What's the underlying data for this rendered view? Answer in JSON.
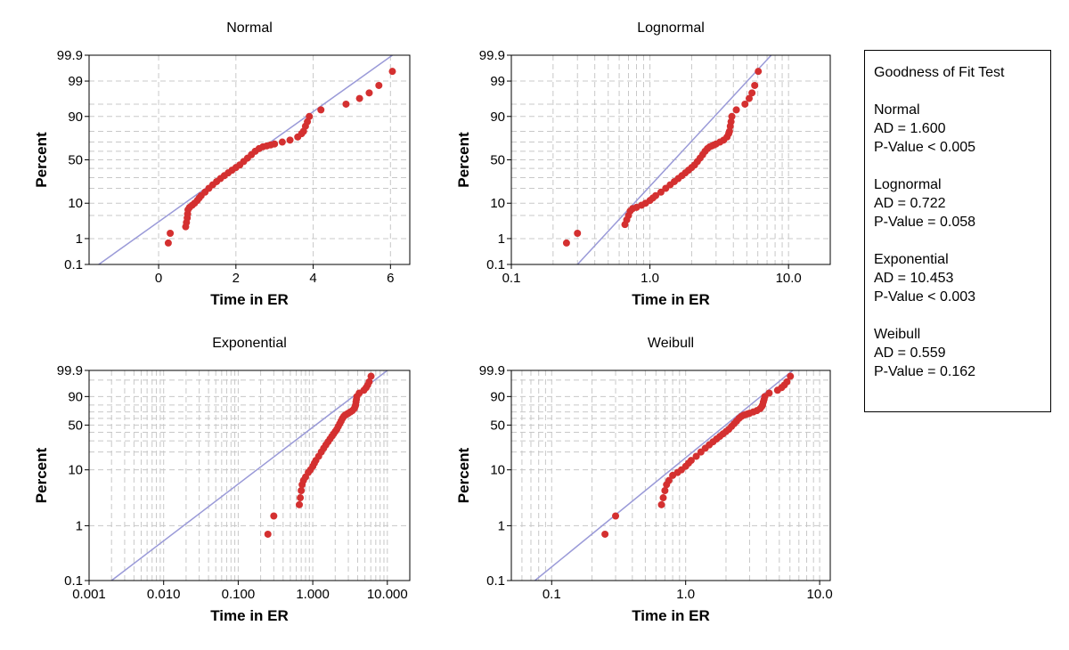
{
  "colors": {
    "points": "#d43030",
    "fit_line": "#9a9ad8",
    "grid": "#c8c8c8",
    "frame": "#000000"
  },
  "chart_data": [
    {
      "type": "scatter",
      "title": "Normal",
      "xlabel": "Time in ER",
      "ylabel": "Percent",
      "xscale": "linear",
      "yscale": "normal-probability",
      "xlim": [
        -1.8,
        6.5
      ],
      "xticks": [
        0,
        2,
        4,
        6
      ],
      "xtick_labels": [
        "0",
        "2",
        "4",
        "6"
      ],
      "yticks": [
        0.1,
        1,
        10,
        50,
        90,
        99,
        99.9
      ],
      "ytick_labels": [
        "0.1",
        "1",
        "10",
        "50",
        "90",
        "99",
        "99.9"
      ],
      "ygrid": [
        0.1,
        1,
        5,
        10,
        20,
        30,
        40,
        50,
        60,
        70,
        80,
        90,
        95,
        99,
        99.9
      ],
      "fit_line": {
        "x": [
          -1.55,
          6.05
        ],
        "percent": [
          0.1,
          99.9
        ]
      },
      "points": [
        [
          0.25,
          0.7
        ],
        [
          0.3,
          1.5
        ],
        [
          0.7,
          2.4
        ],
        [
          0.72,
          3.2
        ],
        [
          0.74,
          4.3
        ],
        [
          0.75,
          5.5
        ],
        [
          0.76,
          7
        ],
        [
          0.8,
          8
        ],
        [
          0.87,
          9
        ],
        [
          0.93,
          10
        ],
        [
          1.0,
          11.5
        ],
        [
          1.05,
          13
        ],
        [
          1.1,
          14.5
        ],
        [
          1.2,
          17
        ],
        [
          1.3,
          20
        ],
        [
          1.4,
          23
        ],
        [
          1.5,
          26
        ],
        [
          1.6,
          29
        ],
        [
          1.7,
          32
        ],
        [
          1.8,
          35
        ],
        [
          1.9,
          38
        ],
        [
          2.0,
          41
        ],
        [
          2.1,
          44
        ],
        [
          2.2,
          48
        ],
        [
          2.3,
          52
        ],
        [
          2.4,
          56
        ],
        [
          2.5,
          60
        ],
        [
          2.6,
          63
        ],
        [
          2.7,
          65
        ],
        [
          2.8,
          66
        ],
        [
          2.9,
          67
        ],
        [
          3.0,
          68
        ],
        [
          3.2,
          70
        ],
        [
          3.4,
          72
        ],
        [
          3.6,
          75
        ],
        [
          3.7,
          78
        ],
        [
          3.75,
          80
        ],
        [
          3.8,
          84
        ],
        [
          3.85,
          87
        ],
        [
          3.9,
          90
        ],
        [
          4.2,
          93
        ],
        [
          4.85,
          95
        ],
        [
          5.2,
          96.5
        ],
        [
          5.45,
          97.6
        ],
        [
          5.7,
          98.6
        ],
        [
          6.05,
          99.55
        ]
      ]
    },
    {
      "type": "scatter",
      "title": "Lognormal",
      "xlabel": "Time in ER",
      "ylabel": "Percent",
      "xscale": "log",
      "yscale": "normal-probability",
      "xlim": [
        0.1,
        20
      ],
      "xticks": [
        0.1,
        1,
        10
      ],
      "xtick_labels": [
        "0.1",
        "1.0",
        "10.0"
      ],
      "yticks": [
        0.1,
        1,
        10,
        50,
        90,
        99,
        99.9
      ],
      "ytick_labels": [
        "0.1",
        "1",
        "10",
        "50",
        "90",
        "99",
        "99.9"
      ],
      "ygrid": [
        0.1,
        1,
        5,
        10,
        20,
        30,
        40,
        50,
        60,
        70,
        80,
        90,
        95,
        99,
        99.9
      ],
      "fit_line": {
        "x": [
          0.3,
          7.5
        ],
        "percent": [
          0.1,
          99.9
        ]
      },
      "points": [
        [
          0.25,
          0.7
        ],
        [
          0.3,
          1.5
        ],
        [
          0.66,
          2.8
        ],
        [
          0.68,
          3.8
        ],
        [
          0.7,
          5
        ],
        [
          0.72,
          6.5
        ],
        [
          0.75,
          7.5
        ],
        [
          0.8,
          8
        ],
        [
          0.87,
          9
        ],
        [
          0.93,
          10
        ],
        [
          1.0,
          11.5
        ],
        [
          1.05,
          13
        ],
        [
          1.1,
          14.5
        ],
        [
          1.2,
          17
        ],
        [
          1.3,
          20
        ],
        [
          1.4,
          23
        ],
        [
          1.5,
          26
        ],
        [
          1.6,
          29
        ],
        [
          1.7,
          32
        ],
        [
          1.8,
          35
        ],
        [
          1.9,
          38
        ],
        [
          2.0,
          41
        ],
        [
          2.1,
          44
        ],
        [
          2.2,
          48
        ],
        [
          2.3,
          52
        ],
        [
          2.4,
          56
        ],
        [
          2.5,
          60
        ],
        [
          2.6,
          63
        ],
        [
          2.7,
          65
        ],
        [
          2.8,
          66
        ],
        [
          2.9,
          67
        ],
        [
          3.0,
          68
        ],
        [
          3.2,
          70
        ],
        [
          3.4,
          72
        ],
        [
          3.6,
          75
        ],
        [
          3.7,
          78
        ],
        [
          3.75,
          80
        ],
        [
          3.8,
          84
        ],
        [
          3.85,
          87
        ],
        [
          3.9,
          90
        ],
        [
          4.2,
          93
        ],
        [
          4.85,
          95
        ],
        [
          5.2,
          96.5
        ],
        [
          5.45,
          97.6
        ],
        [
          5.7,
          98.6
        ],
        [
          6.05,
          99.55
        ]
      ]
    },
    {
      "type": "scatter",
      "title": "Exponential",
      "xlabel": "Time in ER",
      "ylabel": "Percent",
      "xscale": "log",
      "yscale": "exponential-probability",
      "xlim": [
        0.001,
        20
      ],
      "xticks": [
        0.001,
        0.01,
        0.1,
        1,
        10
      ],
      "xtick_labels": [
        "0.001",
        "0.010",
        "0.100",
        "1.000",
        "10.000"
      ],
      "yticks": [
        0.1,
        1,
        10,
        50,
        90,
        99.9
      ],
      "ytick_labels": [
        "0.1",
        "1",
        "10",
        "50",
        "90",
        "99.9"
      ],
      "ygrid": [
        0.1,
        1,
        10,
        20,
        30,
        40,
        50,
        60,
        70,
        80,
        90,
        99,
        99.9
      ],
      "fit_line": {
        "x": [
          0.002,
          10
        ],
        "percent": [
          0.1,
          99.9
        ]
      },
      "points": [
        [
          0.25,
          0.7
        ],
        [
          0.3,
          1.5
        ],
        [
          0.66,
          2.4
        ],
        [
          0.68,
          3.2
        ],
        [
          0.7,
          4.3
        ],
        [
          0.72,
          5.5
        ],
        [
          0.75,
          6.5
        ],
        [
          0.8,
          7.5
        ],
        [
          0.87,
          9
        ],
        [
          0.93,
          10
        ],
        [
          1.0,
          11.5
        ],
        [
          1.05,
          13
        ],
        [
          1.1,
          14.5
        ],
        [
          1.2,
          17
        ],
        [
          1.3,
          20
        ],
        [
          1.4,
          23
        ],
        [
          1.5,
          26
        ],
        [
          1.6,
          29
        ],
        [
          1.7,
          32
        ],
        [
          1.8,
          35
        ],
        [
          1.9,
          38
        ],
        [
          2.0,
          41
        ],
        [
          2.1,
          44
        ],
        [
          2.2,
          48
        ],
        [
          2.3,
          52
        ],
        [
          2.4,
          56
        ],
        [
          2.5,
          60
        ],
        [
          2.6,
          63
        ],
        [
          2.7,
          65
        ],
        [
          2.8,
          66
        ],
        [
          2.9,
          67
        ],
        [
          3.0,
          68
        ],
        [
          3.2,
          70
        ],
        [
          3.4,
          72
        ],
        [
          3.6,
          75
        ],
        [
          3.7,
          78
        ],
        [
          3.75,
          80
        ],
        [
          3.8,
          84
        ],
        [
          3.85,
          87
        ],
        [
          3.9,
          90
        ],
        [
          4.2,
          93
        ],
        [
          4.85,
          95
        ],
        [
          5.2,
          96.5
        ],
        [
          5.45,
          97.6
        ],
        [
          5.7,
          98.6
        ],
        [
          6.05,
          99.55
        ]
      ]
    },
    {
      "type": "scatter",
      "title": "Weibull",
      "xlabel": "Time in ER",
      "ylabel": "Percent",
      "xscale": "log",
      "yscale": "weibull-probability",
      "xlim": [
        0.05,
        12
      ],
      "xticks": [
        0.1,
        1,
        10
      ],
      "xtick_labels": [
        "0.1",
        "1.0",
        "10.0"
      ],
      "yticks": [
        0.1,
        1,
        10,
        50,
        90,
        99.9
      ],
      "ytick_labels": [
        "0.1",
        "1",
        "10",
        "50",
        "90",
        "99.9"
      ],
      "ygrid": [
        0.1,
        1,
        10,
        20,
        30,
        40,
        50,
        60,
        70,
        80,
        90,
        99,
        99.9
      ],
      "fit_line": {
        "x": [
          0.075,
          6.3
        ],
        "percent": [
          0.1,
          99.9
        ]
      },
      "points": [
        [
          0.25,
          0.7
        ],
        [
          0.3,
          1.5
        ],
        [
          0.66,
          2.4
        ],
        [
          0.68,
          3.2
        ],
        [
          0.7,
          4.3
        ],
        [
          0.72,
          5.5
        ],
        [
          0.75,
          6.5
        ],
        [
          0.8,
          8
        ],
        [
          0.87,
          9
        ],
        [
          0.93,
          10
        ],
        [
          1.0,
          11.5
        ],
        [
          1.05,
          13
        ],
        [
          1.1,
          14.5
        ],
        [
          1.2,
          17
        ],
        [
          1.3,
          20
        ],
        [
          1.4,
          23
        ],
        [
          1.5,
          26
        ],
        [
          1.6,
          29
        ],
        [
          1.7,
          32
        ],
        [
          1.8,
          35
        ],
        [
          1.9,
          38
        ],
        [
          2.0,
          41
        ],
        [
          2.1,
          44
        ],
        [
          2.2,
          48
        ],
        [
          2.3,
          52
        ],
        [
          2.4,
          56
        ],
        [
          2.5,
          60
        ],
        [
          2.6,
          63
        ],
        [
          2.7,
          65
        ],
        [
          2.8,
          66
        ],
        [
          2.9,
          67
        ],
        [
          3.0,
          68
        ],
        [
          3.2,
          70
        ],
        [
          3.4,
          72
        ],
        [
          3.6,
          75
        ],
        [
          3.7,
          78
        ],
        [
          3.75,
          80
        ],
        [
          3.8,
          84
        ],
        [
          3.85,
          87
        ],
        [
          3.9,
          90
        ],
        [
          4.2,
          93
        ],
        [
          4.85,
          95
        ],
        [
          5.2,
          96.5
        ],
        [
          5.45,
          97.6
        ],
        [
          5.7,
          98.6
        ],
        [
          6.05,
          99.55
        ]
      ]
    }
  ],
  "goodness_of_fit": {
    "title": "Goodness of Fit Test",
    "groups": [
      {
        "name": "Normal",
        "ad": "AD = 1.600",
        "p": "P-Value < 0.005"
      },
      {
        "name": "Lognormal",
        "ad": "AD = 0.722",
        "p": "P-Value = 0.058"
      },
      {
        "name": "Exponential",
        "ad": "AD = 10.453",
        "p": "P-Value < 0.003"
      },
      {
        "name": "Weibull",
        "ad": "AD = 0.559",
        "p": "P-Value = 0.162"
      }
    ]
  }
}
